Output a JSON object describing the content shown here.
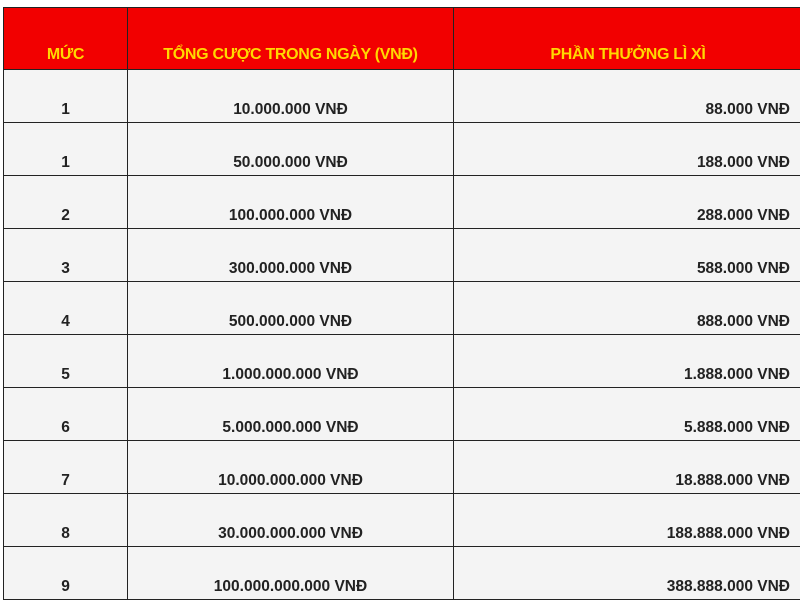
{
  "table": {
    "headers": [
      "MỨC",
      "TỔNG CƯỢC TRONG NGÀY (VNĐ)",
      "PHẦN THƯỞNG LÌ XÌ"
    ],
    "colors": {
      "header_bg": "#f20000",
      "header_text": "#ffd800"
    },
    "rows": [
      [
        "1",
        "10.000.000 VNĐ",
        "88.000 VNĐ"
      ],
      [
        "1",
        "50.000.000 VNĐ",
        "188.000 VNĐ"
      ],
      [
        "2",
        "100.000.000 VNĐ",
        "288.000 VNĐ"
      ],
      [
        "3",
        "300.000.000 VNĐ",
        "588.000 VNĐ"
      ],
      [
        "4",
        "500.000.000 VNĐ",
        "888.000 VNĐ"
      ],
      [
        "5",
        "1.000.000.000 VNĐ",
        "1.888.000 VNĐ"
      ],
      [
        "6",
        "5.000.000.000 VNĐ",
        "5.888.000 VNĐ"
      ],
      [
        "7",
        "10.000.000.000 VNĐ",
        "18.888.000 VNĐ"
      ],
      [
        "8",
        "30.000.000.000 VNĐ",
        "188.888.000 VNĐ"
      ],
      [
        "9",
        "100.000.000.000 VNĐ",
        "388.888.000 VNĐ"
      ]
    ]
  }
}
